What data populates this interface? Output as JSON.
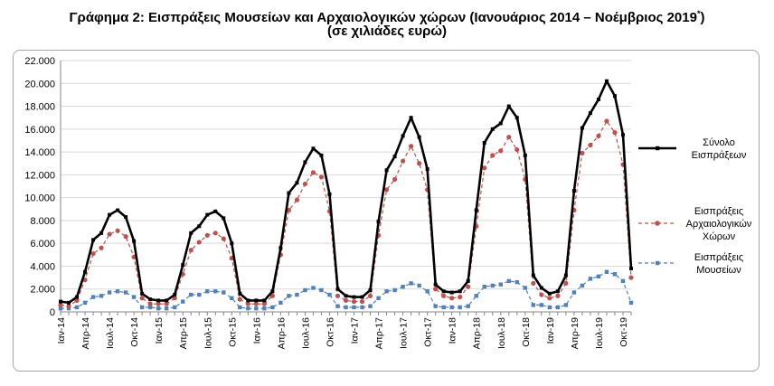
{
  "title_main": "Γράφημα 2: Εισπράξεις Μουσείων και Αρχαιολογικών χώρων (Ιανουάριος 2014 – Νοέμβριος 2019",
  "title_sup": "*",
  "title_close": ")",
  "title_sub": "(σε χιλιάδες ευρώ)",
  "chart_data": {
    "type": "line",
    "title": "Γράφημα 2: Εισπράξεις Μουσείων και Αρχαιολογικών χώρων (Ιανουάριος 2014 – Νοέμβριος 2019*)",
    "subtitle": "(σε χιλιάδες ευρώ)",
    "ylim": [
      0,
      22000
    ],
    "ytick_labels": [
      "0",
      "2.000",
      "4.000",
      "6.000",
      "8.000",
      "10.000",
      "12.000",
      "14.000",
      "16.000",
      "18.000",
      "20.000",
      "22.000"
    ],
    "grid": true,
    "legend_position": "right",
    "x": [
      "Ιαν-14",
      "Φεβ-14",
      "Μαρ-14",
      "Απρ-14",
      "Μαϊ-14",
      "Ιουν-14",
      "Ιουλ-14",
      "Αυγ-14",
      "Σεπ-14",
      "Οκτ-14",
      "Νοε-14",
      "Δεκ-14",
      "Ιαν-15",
      "Φεβ-15",
      "Μαρ-15",
      "Απρ-15",
      "Μαϊ-15",
      "Ιουν-15",
      "Ιουλ-15",
      "Αυγ-15",
      "Σεπ-15",
      "Οκτ-15",
      "Νοε-15",
      "Δεκ-15",
      "Ιαν-16",
      "Φεβ-16",
      "Μαρ-16",
      "Απρ-16",
      "Μαϊ-16",
      "Ιουν-16",
      "Ιουλ-16",
      "Αυγ-16",
      "Σεπ-16",
      "Οκτ-16",
      "Νοε-16",
      "Δεκ-16",
      "Ιαν-17",
      "Φεβ-17",
      "Μαρ-17",
      "Απρ-17",
      "Μαϊ-17",
      "Ιουν-17",
      "Ιουλ-17",
      "Αυγ-17",
      "Σεπ-17",
      "Οκτ-17",
      "Νοε-17",
      "Δεκ-17",
      "Ιαν-18",
      "Φεβ-18",
      "Μαρ-18",
      "Απρ-18",
      "Μαϊ-18",
      "Ιουν-18",
      "Ιουλ-18",
      "Αυγ-18",
      "Σεπ-18",
      "Οκτ-18",
      "Νοε-18",
      "Δεκ-18",
      "Ιαν-19",
      "Φεβ-19",
      "Μαρ-19",
      "Απρ-19",
      "Μαϊ-19",
      "Ιουν-19",
      "Ιουλ-19",
      "Αυγ-19",
      "Σεπ-19",
      "Οκτ-19",
      "Νοε-19"
    ],
    "xtick_labels": [
      {
        "index": 0,
        "label": "Ιαν-14"
      },
      {
        "index": 3,
        "label": "Απρ-14"
      },
      {
        "index": 6,
        "label": "Ιουλ-14"
      },
      {
        "index": 9,
        "label": "Οκτ-14"
      },
      {
        "index": 12,
        "label": "Ιαν-15"
      },
      {
        "index": 15,
        "label": "Απρ-15"
      },
      {
        "index": 18,
        "label": "Ιουλ-15"
      },
      {
        "index": 21,
        "label": "Οκτ-15"
      },
      {
        "index": 24,
        "label": "Ιαν-16"
      },
      {
        "index": 27,
        "label": "Απρ-16"
      },
      {
        "index": 30,
        "label": "Ιουλ-16"
      },
      {
        "index": 33,
        "label": "Οκτ-16"
      },
      {
        "index": 36,
        "label": "Ιαν-17"
      },
      {
        "index": 39,
        "label": "Απρ-17"
      },
      {
        "index": 42,
        "label": "Ιουλ-17"
      },
      {
        "index": 45,
        "label": "Οκτ-17"
      },
      {
        "index": 48,
        "label": "Ιαν-18"
      },
      {
        "index": 51,
        "label": "Απρ-18"
      },
      {
        "index": 54,
        "label": "Ιουλ-18"
      },
      {
        "index": 57,
        "label": "Οκτ-18"
      },
      {
        "index": 60,
        "label": "Ιαν-19"
      },
      {
        "index": 63,
        "label": "Απρ-19"
      },
      {
        "index": 66,
        "label": "Ιουλ-19"
      },
      {
        "index": 69,
        "label": "Οκτ-19"
      }
    ],
    "series": [
      {
        "name": "Σύνολο Εισπράξεων",
        "legend_lines": [
          "Σύνολο",
          "Εισπράξεων"
        ],
        "color": "#000000",
        "style": "solid",
        "marker": "square",
        "values": [
          900,
          800,
          1300,
          3500,
          6300,
          6900,
          8500,
          8900,
          8300,
          6200,
          1600,
          1100,
          1000,
          1000,
          1500,
          4100,
          6900,
          7500,
          8500,
          8800,
          8200,
          6000,
          1600,
          1000,
          1000,
          1000,
          1800,
          5600,
          10400,
          11300,
          13100,
          14300,
          13700,
          10300,
          2000,
          1400,
          1300,
          1300,
          1900,
          7900,
          12400,
          13600,
          15400,
          17000,
          15300,
          12500,
          2400,
          1800,
          1700,
          1800,
          2700,
          8900,
          14800,
          16000,
          16500,
          18000,
          17000,
          13700,
          3200,
          2100,
          1600,
          1800,
          3200,
          10600,
          16100,
          17400,
          18600,
          20200,
          18900,
          15500,
          3800
        ]
      },
      {
        "name": "Εισπράξεις Αρχαιολογικών Χώρων",
        "legend_lines": [
          "Εισπράξεις",
          "Αρχαιολογικών",
          "Χώρων"
        ],
        "color": "#c0504d",
        "style": "dashed",
        "marker": "circle",
        "values": [
          600,
          500,
          1000,
          2800,
          5100,
          5600,
          6800,
          7100,
          6600,
          4800,
          1200,
          700,
          700,
          700,
          1200,
          3300,
          5400,
          6100,
          6700,
          6900,
          6400,
          4700,
          1100,
          700,
          700,
          700,
          1400,
          5000,
          8900,
          9800,
          11200,
          12200,
          11800,
          8800,
          1400,
          1000,
          900,
          900,
          1400,
          6700,
          10700,
          11600,
          13200,
          14500,
          13000,
          10700,
          2000,
          1400,
          1200,
          1300,
          2200,
          7500,
          12600,
          13700,
          14100,
          15300,
          14200,
          11600,
          2500,
          1500,
          1200,
          1400,
          2500,
          8900,
          13900,
          14600,
          15400,
          16700,
          15700,
          12900,
          3000
        ]
      },
      {
        "name": "Εισπράξεις Μουσείων",
        "legend_lines": [
          "Εισπράξεις",
          "Μουσείων"
        ],
        "color": "#4f81bd",
        "style": "dashed",
        "marker": "square",
        "values": [
          300,
          300,
          400,
          800,
          1300,
          1400,
          1700,
          1800,
          1700,
          1300,
          400,
          400,
          300,
          300,
          400,
          900,
          1500,
          1500,
          1800,
          1800,
          1700,
          1200,
          400,
          300,
          300,
          300,
          400,
          800,
          1400,
          1500,
          1900,
          2100,
          1900,
          1500,
          500,
          400,
          400,
          400,
          500,
          1200,
          1800,
          1900,
          2200,
          2500,
          2300,
          1800,
          500,
          400,
          400,
          400,
          500,
          1400,
          2200,
          2300,
          2400,
          2700,
          2600,
          2100,
          600,
          600,
          400,
          400,
          600,
          1700,
          2300,
          2900,
          3100,
          3500,
          3300,
          2700,
          800
        ]
      }
    ]
  }
}
